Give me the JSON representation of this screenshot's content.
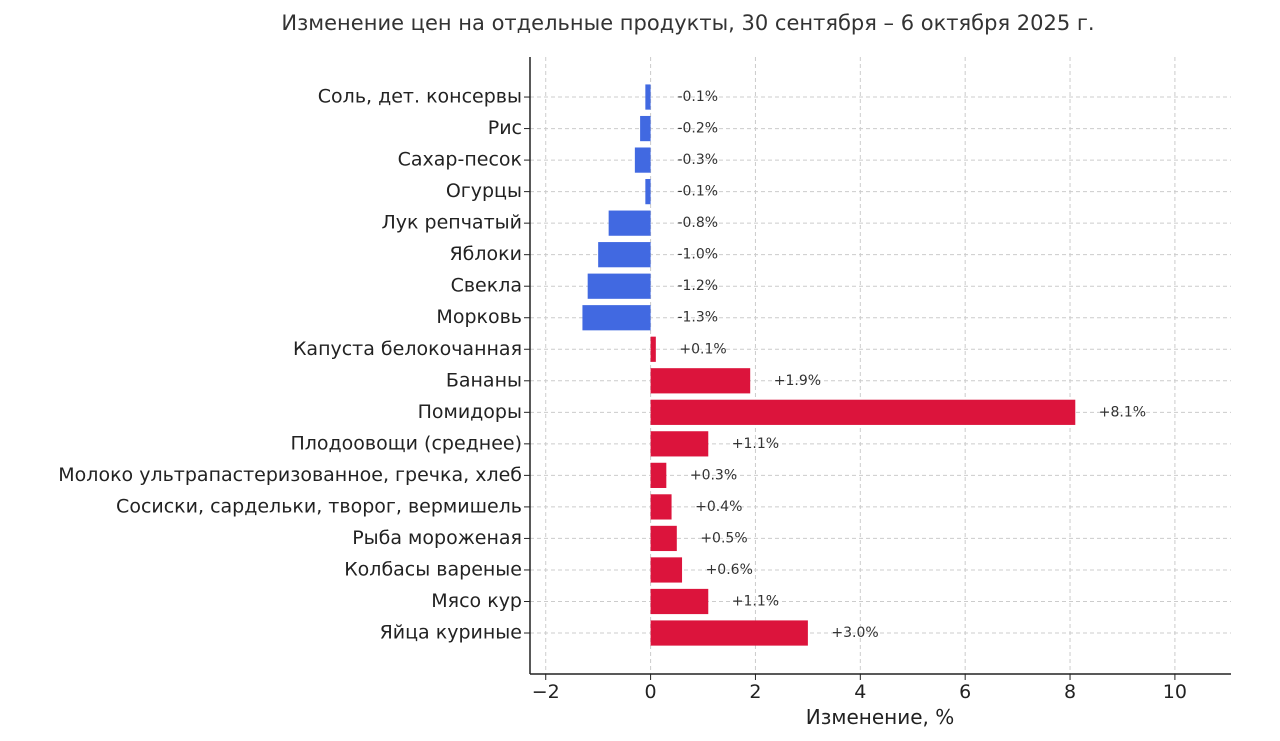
{
  "chart_data": {
    "type": "bar",
    "orientation": "horizontal",
    "title": "Изменение цен на отдельные продукты, 30 сентября – 6 октября 2025 г.",
    "xlabel": "Изменение, %",
    "ylabel": "",
    "xlim": [
      -2.3,
      11.07
    ],
    "xticks": [
      -2,
      0,
      2,
      4,
      6,
      8,
      10
    ],
    "xtick_labels": [
      "−2",
      "0",
      "2",
      "4",
      "6",
      "8",
      "10"
    ],
    "grid": true,
    "categories": [
      "Соль, дет. консервы",
      "Рис",
      "Сахар-песок",
      "Огурцы",
      "Лук репчатый",
      "Яблоки",
      "Свекла",
      "Морковь",
      "Капуста белокочанная",
      "Бананы",
      "Помидоры",
      "Плодоовощи (среднее)",
      "Молоко ультрапастеризованное, гречка, хлеб",
      "Сосиски, сардельки, творог, вермишель",
      "Рыба мороженая",
      "Колбасы вареные",
      "Мясо кур",
      "Яйца куриные"
    ],
    "values": [
      -0.1,
      -0.2,
      -0.3,
      -0.1,
      -0.8,
      -1.0,
      -1.2,
      -1.3,
      0.1,
      1.9,
      8.1,
      1.1,
      0.3,
      0.4,
      0.5,
      0.6,
      1.1,
      3.0
    ],
    "data_labels": [
      "-0.1%",
      "-0.2%",
      "-0.3%",
      "-0.1%",
      "-0.8%",
      "-1.0%",
      "-1.2%",
      "-1.3%",
      "+0.1%",
      "+1.9%",
      "+8.1%",
      "+1.1%",
      "+0.3%",
      "+0.4%",
      "+0.5%",
      "+0.6%",
      "+1.1%",
      "+3.0%"
    ],
    "colors": {
      "negative": "#4169E1",
      "positive": "#DC143C"
    }
  }
}
